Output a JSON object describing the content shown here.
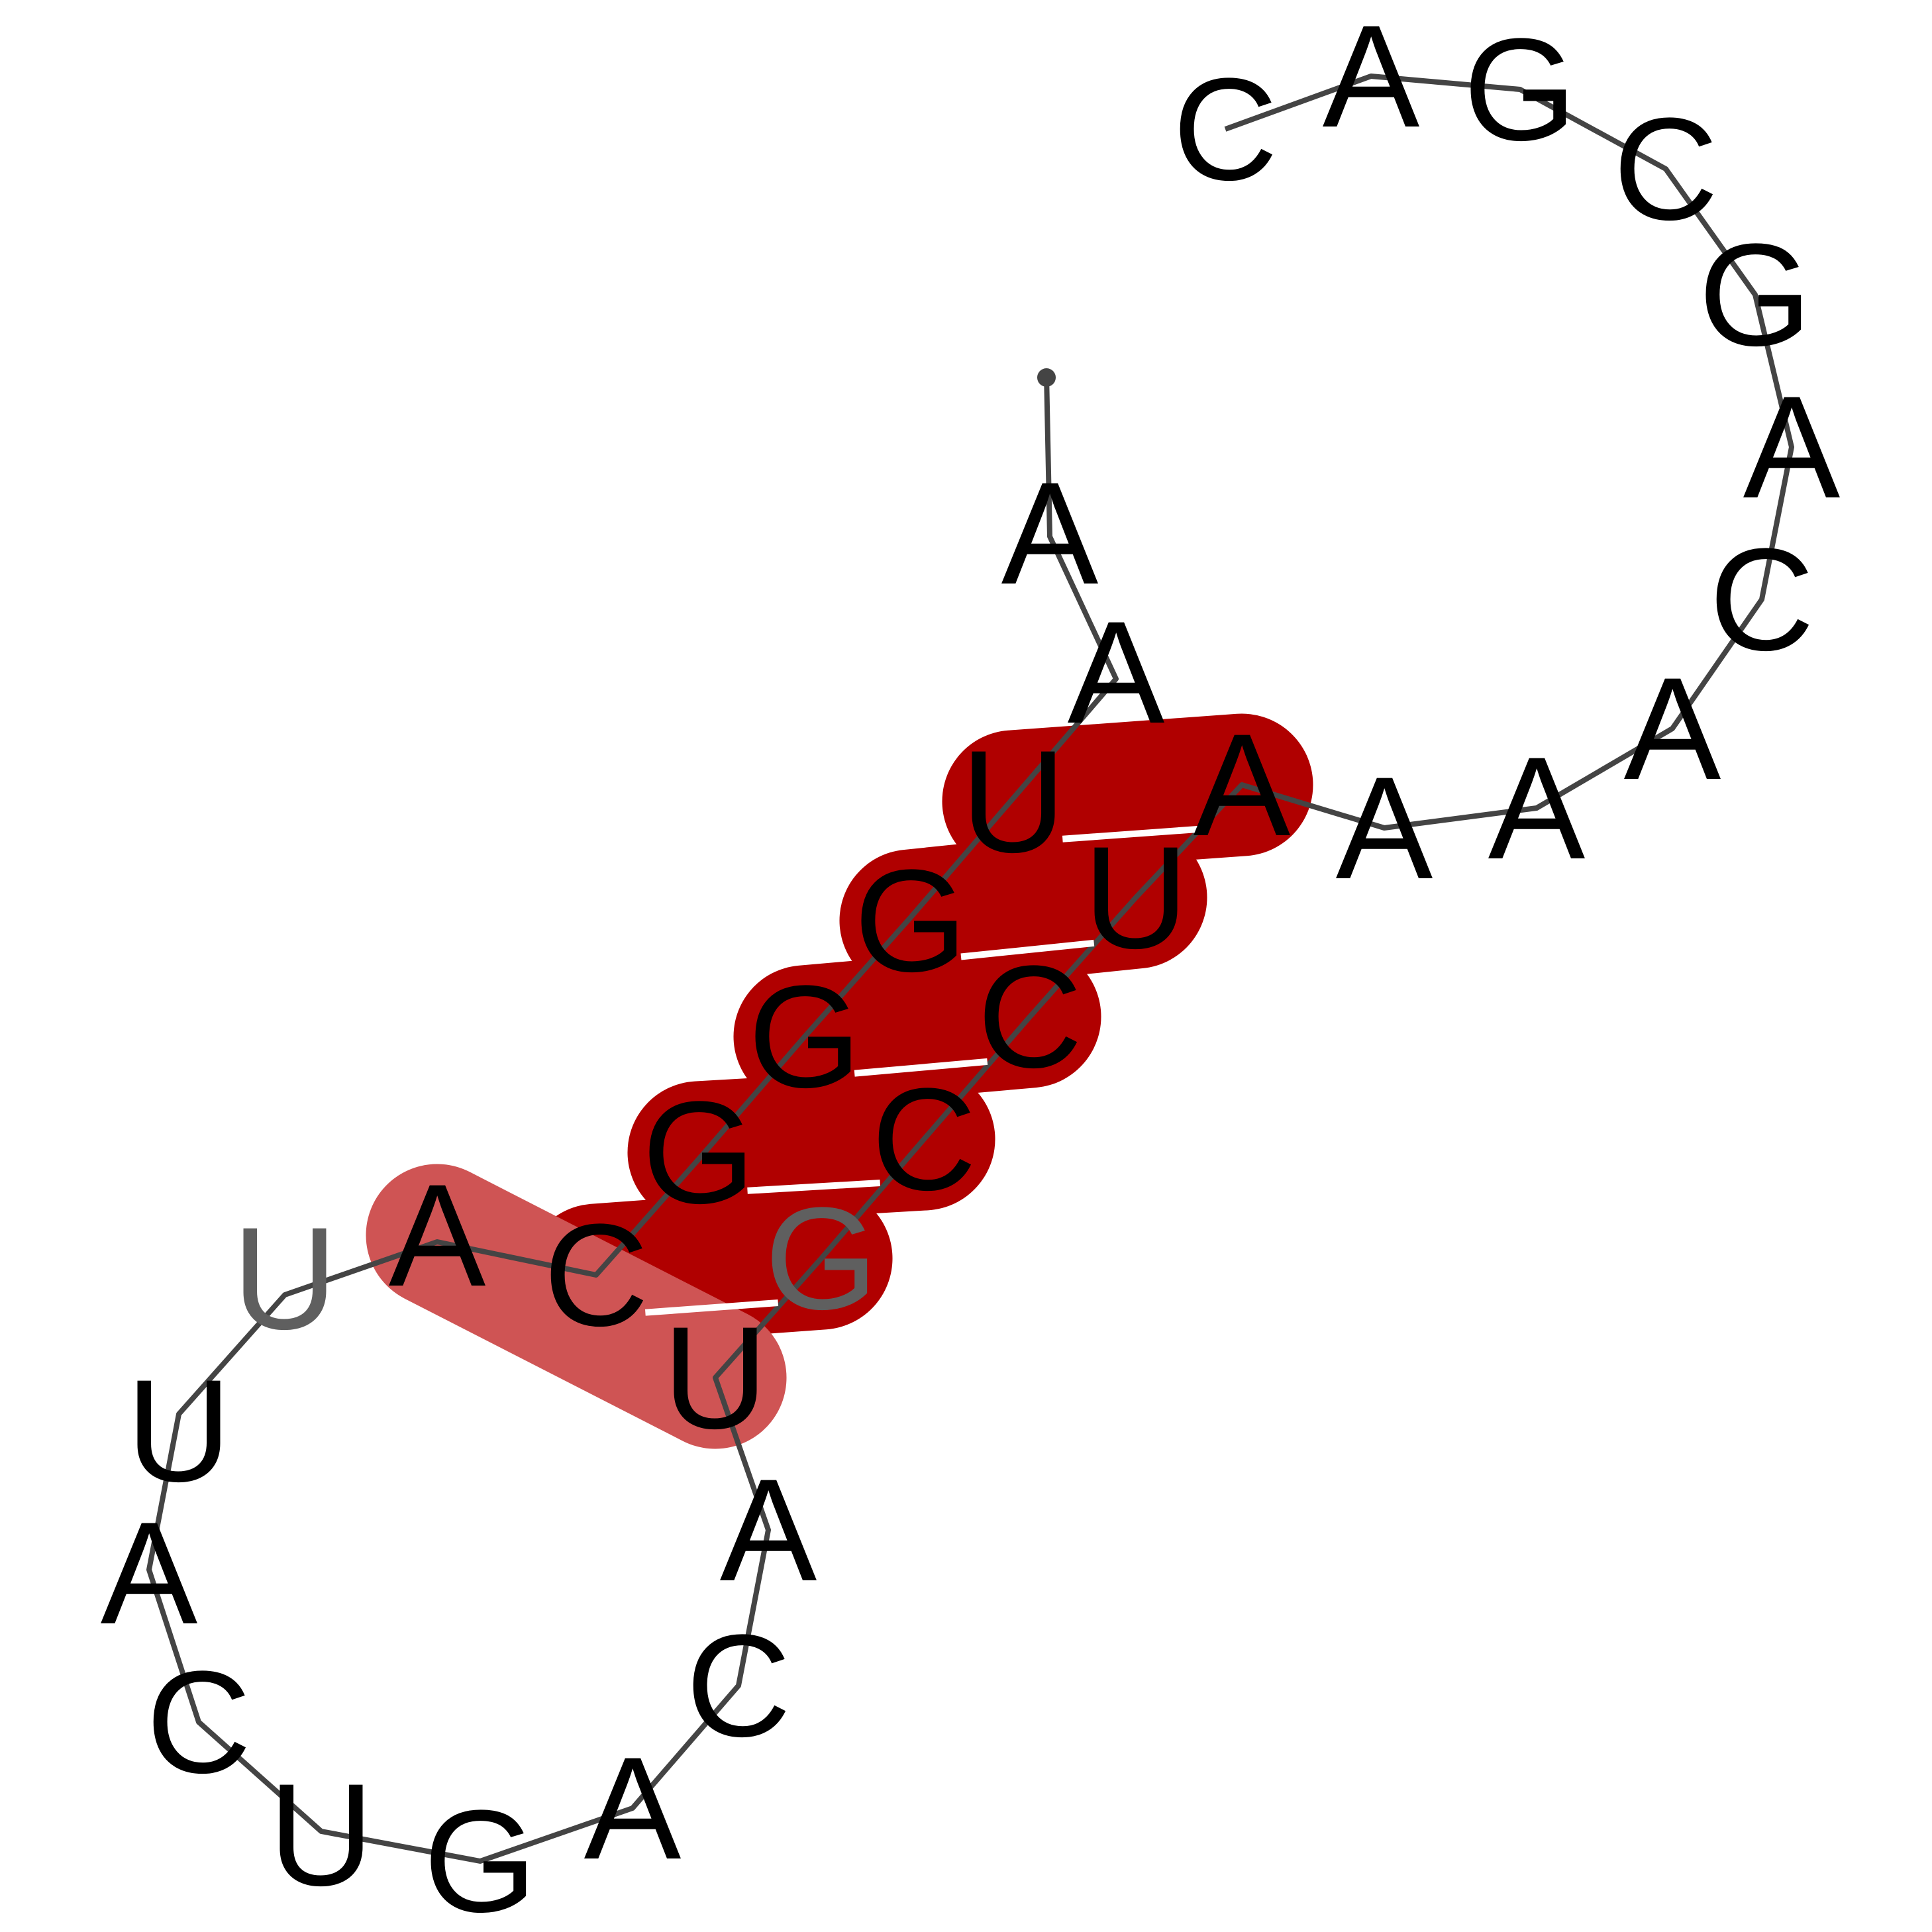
{
  "rna": {
    "sequence": [
      "A",
      "A",
      "U",
      "G",
      "G",
      "G",
      "C",
      "A",
      "U",
      "U",
      "A",
      "C",
      "U",
      "G",
      "A",
      "C",
      "A",
      "U",
      "G",
      "C",
      "C",
      "U",
      "A",
      "A",
      "A",
      "A",
      "C",
      "A",
      "G",
      "C",
      "G",
      "A",
      "C"
    ],
    "base_pairs": [
      [
        3,
        23
      ],
      [
        4,
        22
      ],
      [
        5,
        21
      ],
      [
        6,
        20
      ],
      [
        7,
        19
      ],
      [
        8,
        18
      ]
    ],
    "highlighted_pair": [
      8,
      18
    ],
    "colors": {
      "stem": "#b00000",
      "stem_light": "#cf5454",
      "backbone": "#444444",
      "faded_letter": "#5f5f5f"
    }
  }
}
